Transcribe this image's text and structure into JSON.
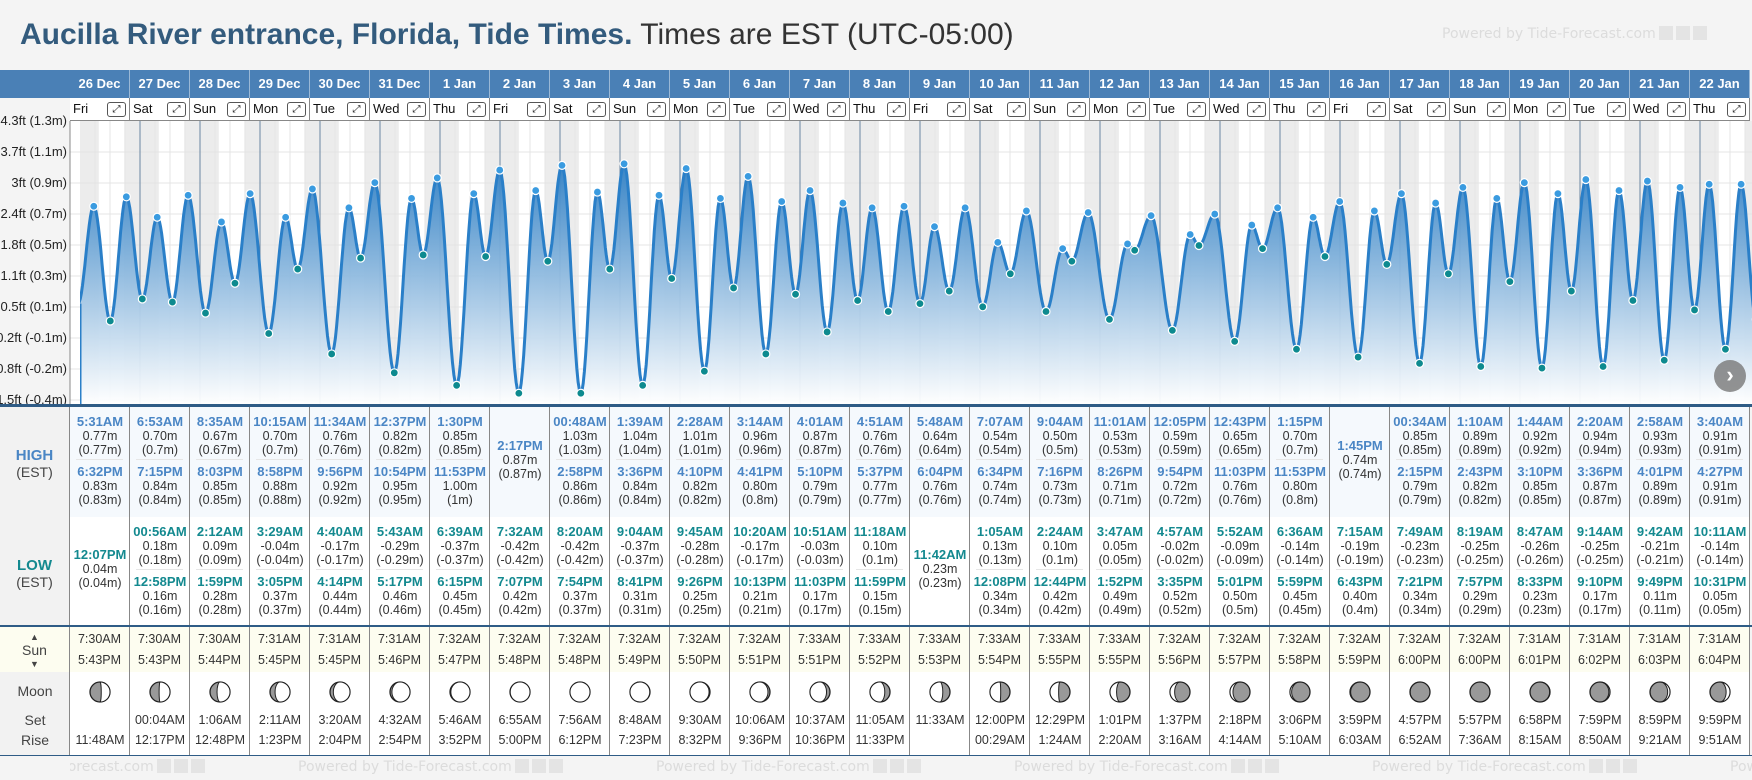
{
  "title": {
    "bold": "Aucilla River entrance, Florida, Tide Times.",
    "rest": "Times are EST (UTC-05:00)"
  },
  "watermark": "Powered by Tide-Forecast.com",
  "labels": {
    "high": "HIGH",
    "low": "LOW",
    "est": "(EST)",
    "sun": "Sun",
    "moon": "Moon",
    "set": "Set",
    "rise": "Rise",
    "up": "▲",
    "down": "▼"
  },
  "axis_labels": [
    "4.3ft (1.3m)",
    "3.7ft (1.1m)",
    "3ft (0.9m)",
    "2.4ft (0.7m)",
    "1.8ft (0.5m)",
    "1.1ft (0.3m)",
    "0.5ft (0.1m)",
    "-0.2ft (-0.1m)",
    "-0.8ft (-0.2m)",
    "-1.5ft (-0.4m)"
  ],
  "colors": {
    "header": "#4a80b6",
    "high": "#4a86c5",
    "low": "#13898f",
    "curve": "#2a7fc8"
  },
  "days": [
    {
      "date": "26 Dec",
      "dow": "Fri",
      "high": [
        [
          "5:31AM",
          "0.77m",
          "(0.77m)"
        ],
        [
          "6:32PM",
          "0.83m",
          "(0.83m)"
        ]
      ],
      "low": [
        [
          "12:07PM",
          "0.04m",
          "(0.04m)"
        ]
      ],
      "sun": [
        "7:30AM",
        "5:43PM"
      ],
      "moon": [
        "",
        "11:48AM"
      ],
      "phase": 0.23
    },
    {
      "date": "27 Dec",
      "dow": "Sat",
      "high": [
        [
          "6:53AM",
          "0.70m",
          "(0.7m)"
        ],
        [
          "7:15PM",
          "0.84m",
          "(0.84m)"
        ]
      ],
      "low": [
        [
          "00:56AM",
          "0.18m",
          "(0.18m)"
        ],
        [
          "12:58PM",
          "0.16m",
          "(0.16m)"
        ]
      ],
      "sun": [
        "7:30AM",
        "5:43PM"
      ],
      "moon": [
        "00:04AM",
        "12:17PM"
      ],
      "phase": 0.264
    },
    {
      "date": "28 Dec",
      "dow": "Sun",
      "high": [
        [
          "8:35AM",
          "0.67m",
          "(0.67m)"
        ],
        [
          "8:03PM",
          "0.85m",
          "(0.85m)"
        ]
      ],
      "low": [
        [
          "2:12AM",
          "0.09m",
          "(0.09m)"
        ],
        [
          "1:59PM",
          "0.28m",
          "(0.28m)"
        ]
      ],
      "sun": [
        "7:30AM",
        "5:44PM"
      ],
      "moon": [
        "1:06AM",
        "12:48PM"
      ],
      "phase": 0.298
    },
    {
      "date": "29 Dec",
      "dow": "Mon",
      "high": [
        [
          "10:15AM",
          "0.70m",
          "(0.7m)"
        ],
        [
          "8:58PM",
          "0.88m",
          "(0.88m)"
        ]
      ],
      "low": [
        [
          "3:29AM",
          "-0.04m",
          "(-0.04m)"
        ],
        [
          "3:05PM",
          "0.37m",
          "(0.37m)"
        ]
      ],
      "sun": [
        "7:31AM",
        "5:45PM"
      ],
      "moon": [
        "2:11AM",
        "1:23PM"
      ],
      "phase": 0.332
    },
    {
      "date": "30 Dec",
      "dow": "Tue",
      "high": [
        [
          "11:34AM",
          "0.76m",
          "(0.76m)"
        ],
        [
          "9:56PM",
          "0.92m",
          "(0.92m)"
        ]
      ],
      "low": [
        [
          "4:40AM",
          "-0.17m",
          "(-0.17m)"
        ],
        [
          "4:14PM",
          "0.44m",
          "(0.44m)"
        ]
      ],
      "sun": [
        "7:31AM",
        "5:45PM"
      ],
      "moon": [
        "3:20AM",
        "2:04PM"
      ],
      "phase": 0.366
    },
    {
      "date": "31 Dec",
      "dow": "Wed",
      "high": [
        [
          "12:37PM",
          "0.82m",
          "(0.82m)"
        ],
        [
          "10:54PM",
          "0.95m",
          "(0.95m)"
        ]
      ],
      "low": [
        [
          "5:43AM",
          "-0.29m",
          "(-0.29m)"
        ],
        [
          "5:17PM",
          "0.46m",
          "(0.46m)"
        ]
      ],
      "sun": [
        "7:31AM",
        "5:46PM"
      ],
      "moon": [
        "4:32AM",
        "2:54PM"
      ],
      "phase": 0.4
    },
    {
      "date": "1 Jan",
      "dow": "Thu",
      "high": [
        [
          "1:30PM",
          "0.85m",
          "(0.85m)"
        ],
        [
          "11:53PM",
          "1.00m",
          "(1m)"
        ]
      ],
      "low": [
        [
          "6:39AM",
          "-0.37m",
          "(-0.37m)"
        ],
        [
          "6:15PM",
          "0.45m",
          "(0.45m)"
        ]
      ],
      "sun": [
        "7:32AM",
        "5:47PM"
      ],
      "moon": [
        "5:46AM",
        "3:52PM"
      ],
      "phase": 0.434
    },
    {
      "date": "2 Jan",
      "dow": "Fri",
      "high": [
        [
          "2:17PM",
          "0.87m",
          "(0.87m)"
        ]
      ],
      "low": [
        [
          "7:32AM",
          "-0.42m",
          "(-0.42m)"
        ],
        [
          "7:07PM",
          "0.42m",
          "(0.42m)"
        ]
      ],
      "sun": [
        "7:32AM",
        "5:48PM"
      ],
      "moon": [
        "6:55AM",
        "5:00PM"
      ],
      "phase": 0.467
    },
    {
      "date": "3 Jan",
      "dow": "Sat",
      "high": [
        [
          "00:48AM",
          "1.03m",
          "(1.03m)"
        ],
        [
          "2:58PM",
          "0.86m",
          "(0.86m)"
        ]
      ],
      "low": [
        [
          "8:20AM",
          "-0.42m",
          "(-0.42m)"
        ],
        [
          "7:54PM",
          "0.37m",
          "(0.37m)"
        ]
      ],
      "sun": [
        "7:32AM",
        "5:48PM"
      ],
      "moon": [
        "7:56AM",
        "6:12PM"
      ],
      "phase": 0.501
    },
    {
      "date": "4 Jan",
      "dow": "Sun",
      "high": [
        [
          "1:39AM",
          "1.04m",
          "(1.04m)"
        ],
        [
          "3:36PM",
          "0.84m",
          "(0.84m)"
        ]
      ],
      "low": [
        [
          "9:04AM",
          "-0.37m",
          "(-0.37m)"
        ],
        [
          "8:41PM",
          "0.31m",
          "(0.31m)"
        ]
      ],
      "sun": [
        "7:32AM",
        "5:49PM"
      ],
      "moon": [
        "8:48AM",
        "7:23PM"
      ],
      "phase": 0.535
    },
    {
      "date": "5 Jan",
      "dow": "Mon",
      "high": [
        [
          "2:28AM",
          "1.01m",
          "(1.01m)"
        ],
        [
          "4:10PM",
          "0.82m",
          "(0.82m)"
        ]
      ],
      "low": [
        [
          "9:45AM",
          "-0.28m",
          "(-0.28m)"
        ],
        [
          "9:26PM",
          "0.25m",
          "(0.25m)"
        ]
      ],
      "sun": [
        "7:32AM",
        "5:50PM"
      ],
      "moon": [
        "9:30AM",
        "8:32PM"
      ],
      "phase": 0.569
    },
    {
      "date": "6 Jan",
      "dow": "Tue",
      "high": [
        [
          "3:14AM",
          "0.96m",
          "(0.96m)"
        ],
        [
          "4:41PM",
          "0.80m",
          "(0.8m)"
        ]
      ],
      "low": [
        [
          "10:20AM",
          "-0.17m",
          "(-0.17m)"
        ],
        [
          "10:13PM",
          "0.21m",
          "(0.21m)"
        ]
      ],
      "sun": [
        "7:32AM",
        "5:51PM"
      ],
      "moon": [
        "10:06AM",
        "9:36PM"
      ],
      "phase": 0.603
    },
    {
      "date": "7 Jan",
      "dow": "Wed",
      "high": [
        [
          "4:01AM",
          "0.87m",
          "(0.87m)"
        ],
        [
          "5:10PM",
          "0.79m",
          "(0.79m)"
        ]
      ],
      "low": [
        [
          "10:51AM",
          "-0.03m",
          "(-0.03m)"
        ],
        [
          "11:03PM",
          "0.17m",
          "(0.17m)"
        ]
      ],
      "sun": [
        "7:33AM",
        "5:51PM"
      ],
      "moon": [
        "10:37AM",
        "10:36PM"
      ],
      "phase": 0.637
    },
    {
      "date": "8 Jan",
      "dow": "Thu",
      "high": [
        [
          "4:51AM",
          "0.76m",
          "(0.76m)"
        ],
        [
          "5:37PM",
          "0.77m",
          "(0.77m)"
        ]
      ],
      "low": [
        [
          "11:18AM",
          "0.10m",
          "(0.1m)"
        ],
        [
          "11:59PM",
          "0.15m",
          "(0.15m)"
        ]
      ],
      "sun": [
        "7:33AM",
        "5:52PM"
      ],
      "moon": [
        "11:05AM",
        "11:33PM"
      ],
      "phase": 0.671
    },
    {
      "date": "9 Jan",
      "dow": "Fri",
      "high": [
        [
          "5:48AM",
          "0.64m",
          "(0.64m)"
        ],
        [
          "6:04PM",
          "0.76m",
          "(0.76m)"
        ]
      ],
      "low": [
        [
          "11:42AM",
          "0.23m",
          "(0.23m)"
        ]
      ],
      "sun": [
        "7:33AM",
        "5:53PM"
      ],
      "moon": [
        "11:33AM",
        ""
      ],
      "phase": 0.705
    },
    {
      "date": "10 Jan",
      "dow": "Sat",
      "high": [
        [
          "7:07AM",
          "0.54m",
          "(0.54m)"
        ],
        [
          "6:34PM",
          "0.74m",
          "(0.74m)"
        ]
      ],
      "low": [
        [
          "1:05AM",
          "0.13m",
          "(0.13m)"
        ],
        [
          "12:08PM",
          "0.34m",
          "(0.34m)"
        ]
      ],
      "sun": [
        "7:33AM",
        "5:54PM"
      ],
      "moon": [
        "12:00PM",
        "00:29AM"
      ],
      "phase": 0.739
    },
    {
      "date": "11 Jan",
      "dow": "Sun",
      "high": [
        [
          "9:04AM",
          "0.50m",
          "(0.5m)"
        ],
        [
          "7:16PM",
          "0.73m",
          "(0.73m)"
        ]
      ],
      "low": [
        [
          "2:24AM",
          "0.10m",
          "(0.1m)"
        ],
        [
          "12:44PM",
          "0.42m",
          "(0.42m)"
        ]
      ],
      "sun": [
        "7:33AM",
        "5:55PM"
      ],
      "moon": [
        "12:29PM",
        "1:24AM"
      ],
      "phase": 0.772
    },
    {
      "date": "12 Jan",
      "dow": "Mon",
      "high": [
        [
          "11:01AM",
          "0.53m",
          "(0.53m)"
        ],
        [
          "8:26PM",
          "0.71m",
          "(0.71m)"
        ]
      ],
      "low": [
        [
          "3:47AM",
          "0.05m",
          "(0.05m)"
        ],
        [
          "1:52PM",
          "0.49m",
          "(0.49m)"
        ]
      ],
      "sun": [
        "7:33AM",
        "5:55PM"
      ],
      "moon": [
        "1:01PM",
        "2:20AM"
      ],
      "phase": 0.806
    },
    {
      "date": "13 Jan",
      "dow": "Tue",
      "high": [
        [
          "12:05PM",
          "0.59m",
          "(0.59m)"
        ],
        [
          "9:54PM",
          "0.72m",
          "(0.72m)"
        ]
      ],
      "low": [
        [
          "4:57AM",
          "-0.02m",
          "(-0.02m)"
        ],
        [
          "3:35PM",
          "0.52m",
          "(0.52m)"
        ]
      ],
      "sun": [
        "7:32AM",
        "5:56PM"
      ],
      "moon": [
        "1:37PM",
        "3:16AM"
      ],
      "phase": 0.84
    },
    {
      "date": "14 Jan",
      "dow": "Wed",
      "high": [
        [
          "12:43PM",
          "0.65m",
          "(0.65m)"
        ],
        [
          "11:03PM",
          "0.76m",
          "(0.76m)"
        ]
      ],
      "low": [
        [
          "5:52AM",
          "-0.09m",
          "(-0.09m)"
        ],
        [
          "5:01PM",
          "0.50m",
          "(0.5m)"
        ]
      ],
      "sun": [
        "7:32AM",
        "5:57PM"
      ],
      "moon": [
        "2:18PM",
        "4:14AM"
      ],
      "phase": 0.874
    },
    {
      "date": "15 Jan",
      "dow": "Thu",
      "high": [
        [
          "1:15PM",
          "0.70m",
          "(0.7m)"
        ],
        [
          "11:53PM",
          "0.80m",
          "(0.8m)"
        ]
      ],
      "low": [
        [
          "6:36AM",
          "-0.14m",
          "(-0.14m)"
        ],
        [
          "5:59PM",
          "0.45m",
          "(0.45m)"
        ]
      ],
      "sun": [
        "7:32AM",
        "5:58PM"
      ],
      "moon": [
        "3:06PM",
        "5:10AM"
      ],
      "phase": 0.908
    },
    {
      "date": "16 Jan",
      "dow": "Fri",
      "high": [
        [
          "1:45PM",
          "0.74m",
          "(0.74m)"
        ]
      ],
      "low": [
        [
          "7:15AM",
          "-0.19m",
          "(-0.19m)"
        ],
        [
          "6:43PM",
          "0.40m",
          "(0.4m)"
        ]
      ],
      "sun": [
        "7:32AM",
        "5:59PM"
      ],
      "moon": [
        "3:59PM",
        "6:03AM"
      ],
      "phase": 0.942
    },
    {
      "date": "17 Jan",
      "dow": "Sat",
      "high": [
        [
          "00:34AM",
          "0.85m",
          "(0.85m)"
        ],
        [
          "2:15PM",
          "0.79m",
          "(0.79m)"
        ]
      ],
      "low": [
        [
          "7:49AM",
          "-0.23m",
          "(-0.23m)"
        ],
        [
          "7:21PM",
          "0.34m",
          "(0.34m)"
        ]
      ],
      "sun": [
        "7:32AM",
        "6:00PM"
      ],
      "moon": [
        "4:57PM",
        "6:52AM"
      ],
      "phase": 0.976
    },
    {
      "date": "18 Jan",
      "dow": "Sun",
      "high": [
        [
          "1:10AM",
          "0.89m",
          "(0.89m)"
        ],
        [
          "2:43PM",
          "0.82m",
          "(0.82m)"
        ]
      ],
      "low": [
        [
          "8:19AM",
          "-0.25m",
          "(-0.25m)"
        ],
        [
          "7:57PM",
          "0.29m",
          "(0.29m)"
        ]
      ],
      "sun": [
        "7:32AM",
        "6:00PM"
      ],
      "moon": [
        "5:57PM",
        "7:36AM"
      ],
      "phase": 0.01
    },
    {
      "date": "19 Jan",
      "dow": "Mon",
      "high": [
        [
          "1:44AM",
          "0.92m",
          "(0.92m)"
        ],
        [
          "3:10PM",
          "0.85m",
          "(0.85m)"
        ]
      ],
      "low": [
        [
          "8:47AM",
          "-0.26m",
          "(-0.26m)"
        ],
        [
          "8:33PM",
          "0.23m",
          "(0.23m)"
        ]
      ],
      "sun": [
        "7:31AM",
        "6:01PM"
      ],
      "moon": [
        "6:58PM",
        "8:15AM"
      ],
      "phase": 0.044
    },
    {
      "date": "20 Jan",
      "dow": "Tue",
      "high": [
        [
          "2:20AM",
          "0.94m",
          "(0.94m)"
        ],
        [
          "3:36PM",
          "0.87m",
          "(0.87m)"
        ]
      ],
      "low": [
        [
          "9:14AM",
          "-0.25m",
          "(-0.25m)"
        ],
        [
          "9:10PM",
          "0.17m",
          "(0.17m)"
        ]
      ],
      "sun": [
        "7:31AM",
        "6:02PM"
      ],
      "moon": [
        "7:59PM",
        "8:50AM"
      ],
      "phase": 0.078
    },
    {
      "date": "21 Jan",
      "dow": "Wed",
      "high": [
        [
          "2:58AM",
          "0.93m",
          "(0.93m)"
        ],
        [
          "4:01PM",
          "0.89m",
          "(0.89m)"
        ]
      ],
      "low": [
        [
          "9:42AM",
          "-0.21m",
          "(-0.21m)"
        ],
        [
          "9:49PM",
          "0.11m",
          "(0.11m)"
        ]
      ],
      "sun": [
        "7:31AM",
        "6:03PM"
      ],
      "moon": [
        "8:59PM",
        "9:21AM"
      ],
      "phase": 0.111
    },
    {
      "date": "22 Jan",
      "dow": "Thu",
      "high": [
        [
          "3:40AM",
          "0.91m",
          "(0.91m)"
        ],
        [
          "4:27PM",
          "0.91m",
          "(0.91m)"
        ]
      ],
      "low": [
        [
          "10:11AM",
          "-0.14m",
          "(-0.14m)"
        ],
        [
          "10:31PM",
          "0.05m",
          "(0.05m)"
        ]
      ],
      "sun": [
        "7:31AM",
        "6:04PM"
      ],
      "moon": [
        "9:59PM",
        "9:51AM"
      ],
      "phase": 0.145
    }
  ]
}
